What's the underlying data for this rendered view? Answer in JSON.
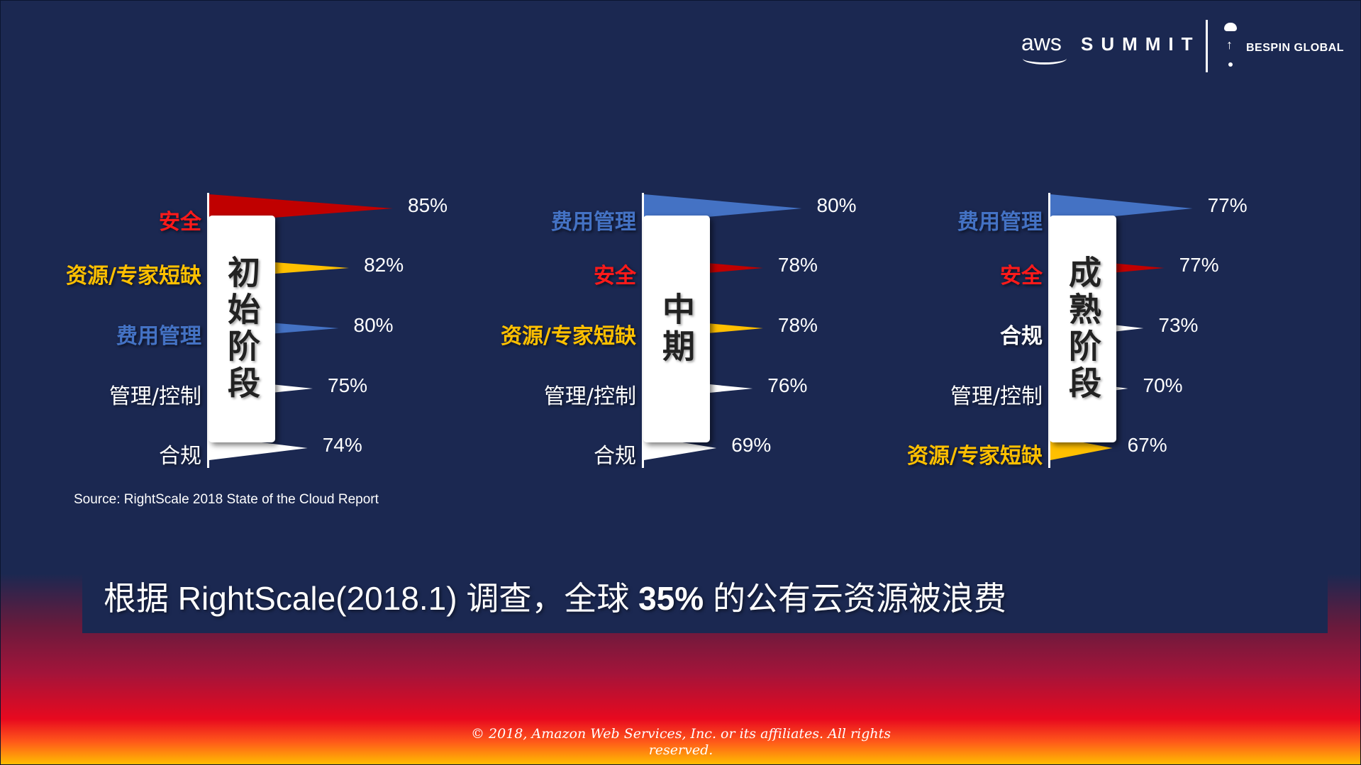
{
  "header": {
    "aws_logo": "aws",
    "summit": "SUMMIT",
    "partner": "BESPIN GLOBAL",
    "partner_icons": [
      "cloud-icon",
      "arrow-up-icon",
      "dot-icon"
    ]
  },
  "colors": {
    "background": "#1b2851",
    "security": "#c00000",
    "resources": "#ffc000",
    "cost": "#4472c4",
    "neutral": "#ffffff"
  },
  "chart_data": [
    {
      "type": "bar",
      "title": "初始阶段",
      "categories": [
        "安全",
        "资源/专家短缺",
        "费用管理",
        "管理/控制",
        "合规"
      ],
      "values": [
        85,
        82,
        80,
        75,
        74
      ],
      "value_labels": [
        "85%",
        "82%",
        "80%",
        "75%",
        "74%"
      ],
      "colors": [
        "#c00000",
        "#ffc000",
        "#4472c4",
        "#ffffff",
        "#ffffff"
      ],
      "orientation": "horizontal",
      "unit": "%"
    },
    {
      "type": "bar",
      "title": "中期",
      "categories": [
        "费用管理",
        "安全",
        "资源/专家短缺",
        "管理/控制",
        "合规"
      ],
      "values": [
        80,
        78,
        78,
        76,
        69
      ],
      "value_labels": [
        "80%",
        "78%",
        "78%",
        "76%",
        "69%"
      ],
      "colors": [
        "#4472c4",
        "#c00000",
        "#ffc000",
        "#ffffff",
        "#ffffff"
      ],
      "orientation": "horizontal",
      "unit": "%"
    },
    {
      "type": "bar",
      "title": "成熟阶段",
      "categories": [
        "费用管理",
        "安全",
        "合规",
        "管理/控制",
        "资源/专家短缺"
      ],
      "values": [
        77,
        77,
        73,
        70,
        67
      ],
      "value_labels": [
        "77%",
        "77%",
        "73%",
        "70%",
        "67%"
      ],
      "colors": [
        "#4472c4",
        "#c00000",
        "#ffffff",
        "#ffffff",
        "#ffc000"
      ],
      "orientation": "horizontal",
      "unit": "%"
    }
  ],
  "source": "Source: RightScale 2018 State of the Cloud Report",
  "banner": {
    "prefix": "根据 RightScale(2018.1) 调查，全球 ",
    "highlight": "35%",
    "suffix": " 的公有云资源被浪费"
  },
  "footer": {
    "copyright": "© 2018, Amazon Web Services, Inc. or its affiliates. All rights reserved."
  }
}
